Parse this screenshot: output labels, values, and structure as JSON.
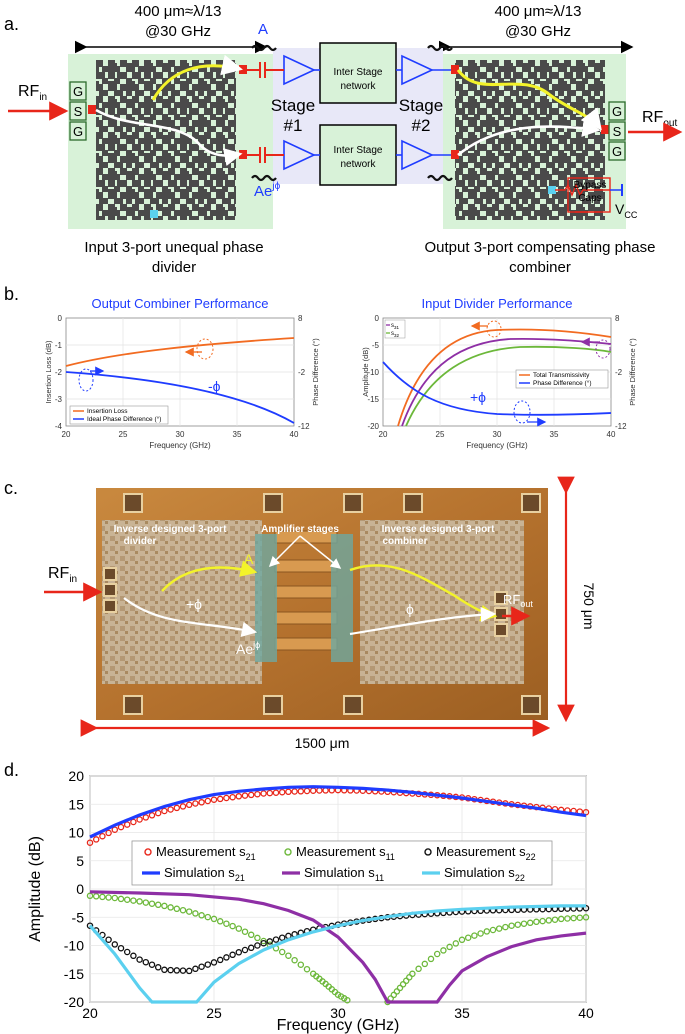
{
  "panel_a": {
    "label": "a.",
    "size_left_1": "400 μm≈λ/13",
    "size_left_2": "@30 GHz",
    "size_right_1": "400 μm≈λ/13",
    "size_right_2": "@30 GHz",
    "rf_in": "RF",
    "rf_in_sub": "in",
    "rf_out": "RF",
    "rf_out_sub": "out",
    "port_g": "G",
    "port_s": "S",
    "label_A": "A",
    "label_Ae": "Ae",
    "label_Ae_sup": "jϕ",
    "stage1_1": "Stage",
    "stage1_2": "#1",
    "stage2_1": "Stage",
    "stage2_2": "#2",
    "isn_1": "Inter Stage",
    "isn_2": "network",
    "bypass_1": "Bypass",
    "bypass_2": "Caps",
    "vcc": "V",
    "vcc_sub": "CC",
    "divider_caption_1": "Input 3-port unequal phase",
    "divider_caption_2": "divider",
    "combiner_caption_1": "Output 3-port compensating phase",
    "combiner_caption_2": "combiner",
    "colors": {
      "pad_green": "#d5f5d5",
      "amp_blue": "#1f3cff",
      "stage_bg": "#e8e8f8",
      "yellow_path": "#f3f32a",
      "red": "#e8261a"
    }
  },
  "panel_b": {
    "label": "b.",
    "left": {
      "title": "Output Combiner Performance",
      "xlabel": "Frequency (GHz)",
      "ylabel_left": "Insertion Loss (dB)",
      "ylabel_right": "Phase Difference (°)",
      "xticks": [
        "20",
        "25",
        "30",
        "35",
        "40"
      ],
      "yticks_left": [
        "-1",
        "-2",
        "-3",
        "-4"
      ],
      "yticks_left_top": "0",
      "yticks_right": [
        "8",
        "-2",
        "-12"
      ],
      "legend": [
        "Insertion Loss",
        "Ideal Phase Difference (°)"
      ],
      "annotation": "-ϕ"
    },
    "right": {
      "title": "Input Divider Performance",
      "xlabel": "Frequency (GHz)",
      "ylabel_left": "Amplitude (dB)",
      "ylabel_right": "Phase Difference (°)",
      "xticks": [
        "20",
        "25",
        "30",
        "35",
        "40"
      ],
      "yticks_left": [
        "0",
        "-5",
        "-10",
        "-15",
        "-20"
      ],
      "yticks_right": [
        "8",
        "-2",
        "-12"
      ],
      "legend": [
        "Total Transmissivity",
        "Phase Difference (°)"
      ],
      "legend_s": [
        "s",
        "s"
      ],
      "legend_s_sub": [
        "31",
        "32"
      ],
      "annotation": "+ϕ"
    }
  },
  "panel_c": {
    "label": "c.",
    "rf_in": "RF",
    "rf_in_sub": "in",
    "rf_out": "RF",
    "rf_out_sub": "out",
    "divider_1": "Inverse designed 3-port",
    "divider_2": "divider",
    "amplifier": "Amplifier stages",
    "combiner_1": "Inverse designed 3-port",
    "combiner_2": "combiner",
    "label_A": "A",
    "label_plus_phi": "+ϕ",
    "label_Ae": "Ae",
    "label_Ae_sup": "jϕ",
    "label_phi": "ϕ",
    "height": "750 μm",
    "width": "1500 μm"
  },
  "panel_d": {
    "label": "d.",
    "chart_data": {
      "type": "line",
      "xlabel": "Frequency (GHz)",
      "ylabel": "Amplitude (dB)",
      "xlim": [
        20,
        40
      ],
      "ylim": [
        -20,
        20
      ],
      "xticks": [
        "20",
        "25",
        "30",
        "35",
        "40"
      ],
      "yticks": [
        "20",
        "15",
        "10",
        "5",
        "0",
        "-5",
        "-10",
        "-15",
        "-20"
      ],
      "legend_location": "center",
      "series": [
        {
          "name": "Measurement s21",
          "label": "Measurement s",
          "sub": "21",
          "style": "marker",
          "color": "#e8261a",
          "x": [
            20,
            21,
            22,
            23,
            24,
            25,
            26,
            27,
            28,
            29,
            30,
            31,
            32,
            33,
            34,
            35,
            36,
            37,
            38,
            39,
            40
          ],
          "y": [
            8.2,
            10.5,
            12.3,
            13.8,
            14.9,
            15.8,
            16.4,
            16.9,
            17.2,
            17.4,
            17.5,
            17.4,
            17.2,
            16.9,
            16.6,
            16.2,
            15.6,
            15.0,
            14.5,
            14.0,
            13.6
          ]
        },
        {
          "name": "Measurement s11",
          "label": "Measurement s",
          "sub": "11",
          "style": "marker",
          "color": "#6cb83a",
          "x": [
            20,
            21,
            22,
            23,
            24,
            25,
            26,
            27,
            28,
            29,
            29.5,
            30,
            30.5,
            32,
            32.5,
            33,
            34,
            35,
            36,
            37,
            38,
            39,
            40
          ],
          "y": [
            -1.2,
            -1.6,
            -2.2,
            -3.0,
            -4.0,
            -5.3,
            -7.0,
            -9.2,
            -11.8,
            -15.0,
            -16.8,
            -18.7,
            -20.0,
            -20.0,
            -17.5,
            -15.0,
            -11.5,
            -9.0,
            -7.5,
            -6.5,
            -5.8,
            -5.3,
            -5.0
          ]
        },
        {
          "name": "Measurement s22",
          "label": "Measurement s",
          "sub": "22",
          "style": "marker",
          "color": "#111111",
          "x": [
            20,
            21,
            22,
            23,
            24,
            25,
            26,
            27,
            28,
            29,
            30,
            31,
            32,
            33,
            34,
            35,
            36,
            37,
            38,
            39,
            40
          ],
          "y": [
            -6.5,
            -9.8,
            -12.5,
            -14.3,
            -14.5,
            -13.0,
            -11.2,
            -9.6,
            -8.3,
            -7.2,
            -6.3,
            -5.6,
            -5.0,
            -4.6,
            -4.3,
            -4.0,
            -3.8,
            -3.7,
            -3.6,
            -3.5,
            -3.4
          ]
        },
        {
          "name": "Simulation s21",
          "label": "Simulation s",
          "sub": "21",
          "style": "line",
          "color": "#1f3cff",
          "x": [
            20,
            21,
            22,
            23,
            24,
            25,
            26,
            27,
            28,
            29,
            30,
            31,
            32,
            33,
            34,
            35,
            36,
            37,
            38,
            39,
            40
          ],
          "y": [
            9.2,
            11.3,
            13.1,
            14.6,
            15.8,
            16.7,
            17.3,
            17.7,
            18.0,
            18.1,
            18.0,
            17.8,
            17.5,
            17.1,
            16.6,
            16.1,
            15.5,
            14.9,
            14.3,
            13.6,
            13.0
          ]
        },
        {
          "name": "Simulation s11",
          "label": "Simulation s",
          "sub": "11",
          "style": "line",
          "color": "#8e2fa5",
          "x": [
            20,
            22,
            24,
            26,
            27,
            28,
            29,
            30,
            31,
            31.5,
            32,
            34,
            34.5,
            35,
            36,
            37,
            38,
            39,
            40
          ],
          "y": [
            -0.5,
            -0.7,
            -1.0,
            -1.8,
            -2.6,
            -3.8,
            -5.5,
            -8.5,
            -13.0,
            -16.0,
            -20.0,
            -20.0,
            -17.0,
            -14.5,
            -12.0,
            -10.2,
            -9.0,
            -8.3,
            -7.8
          ]
        },
        {
          "name": "Simulation s22",
          "label": "Simulation s",
          "sub": "22",
          "style": "line",
          "color": "#5bd0ef",
          "x": [
            20,
            21,
            22,
            22.5,
            24.3,
            25,
            26,
            27,
            28,
            29,
            30,
            31,
            32,
            33,
            34,
            35,
            36,
            37,
            38,
            39,
            40
          ],
          "y": [
            -6.5,
            -11.5,
            -17.5,
            -20.0,
            -20.0,
            -16.5,
            -13.2,
            -10.8,
            -9.0,
            -7.6,
            -6.5,
            -5.6,
            -4.9,
            -4.3,
            -3.9,
            -3.6,
            -3.4,
            -3.2,
            -3.1,
            -3.0,
            -3.0
          ]
        }
      ]
    }
  }
}
